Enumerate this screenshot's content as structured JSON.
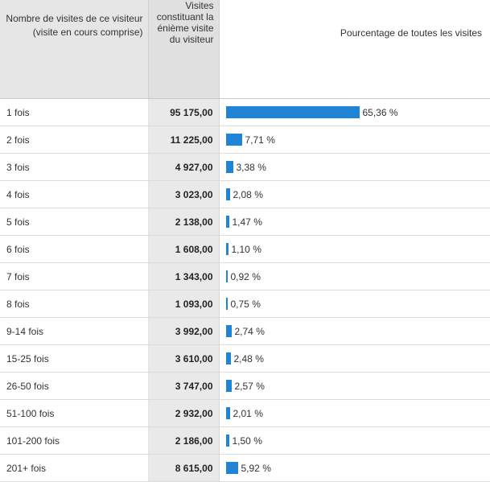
{
  "table": {
    "headers": {
      "dimension": "Nombre de visites de ce visiteur (visite en cours comprise)",
      "visits": "Visites constituant la énième visite du visiteur",
      "percent": "Pourcentage de toutes les visites"
    },
    "bar_color": "#1f84d6",
    "rows": [
      {
        "label": "1 fois",
        "visits": "95 175,00",
        "percent_text": "65,36 %",
        "percent": 65.36
      },
      {
        "label": "2 fois",
        "visits": "11 225,00",
        "percent_text": "7,71 %",
        "percent": 7.71
      },
      {
        "label": "3 fois",
        "visits": "4 927,00",
        "percent_text": "3,38 %",
        "percent": 3.38
      },
      {
        "label": "4 fois",
        "visits": "3 023,00",
        "percent_text": "2,08 %",
        "percent": 2.08
      },
      {
        "label": "5 fois",
        "visits": "2 138,00",
        "percent_text": "1,47 %",
        "percent": 1.47
      },
      {
        "label": "6 fois",
        "visits": "1 608,00",
        "percent_text": "1,10 %",
        "percent": 1.1
      },
      {
        "label": "7 fois",
        "visits": "1 343,00",
        "percent_text": "0,92 %",
        "percent": 0.92
      },
      {
        "label": "8 fois",
        "visits": "1 093,00",
        "percent_text": "0,75 %",
        "percent": 0.75
      },
      {
        "label": "9-14 fois",
        "visits": "3 992,00",
        "percent_text": "2,74 %",
        "percent": 2.74
      },
      {
        "label": "15-25 fois",
        "visits": "3 610,00",
        "percent_text": "2,48 %",
        "percent": 2.48
      },
      {
        "label": "26-50 fois",
        "visits": "3 747,00",
        "percent_text": "2,57 %",
        "percent": 2.57
      },
      {
        "label": "51-100 fois",
        "visits": "2 932,00",
        "percent_text": "2,01 %",
        "percent": 2.01
      },
      {
        "label": "101-200 fois",
        "visits": "2 186,00",
        "percent_text": "1,50 %",
        "percent": 1.5
      },
      {
        "label": "201+ fois",
        "visits": "8 615,00",
        "percent_text": "5,92 %",
        "percent": 5.92
      }
    ]
  }
}
